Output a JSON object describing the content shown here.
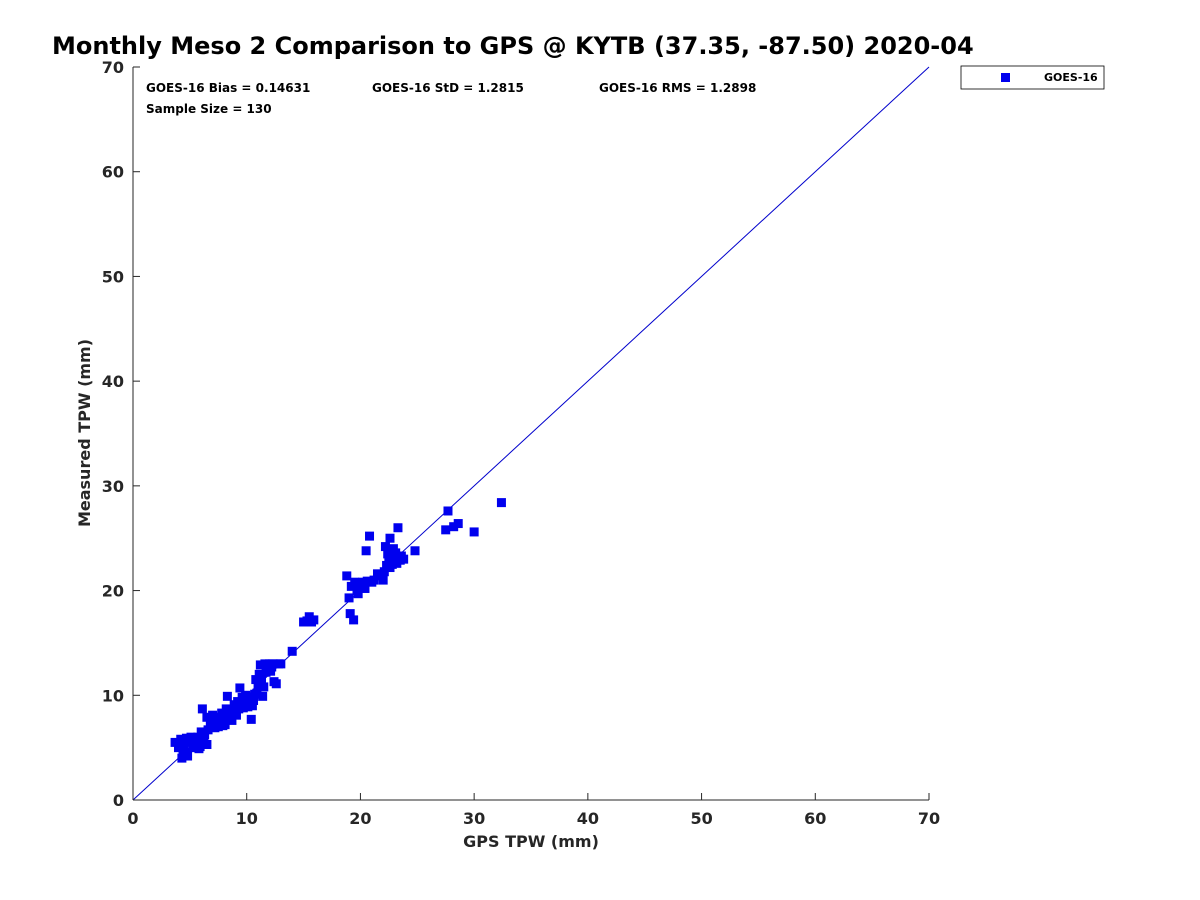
{
  "chart_data": {
    "type": "scatter",
    "title": "Monthly Meso 2 Comparison to GPS @ KYTB (37.35, -87.50) 2020-04",
    "xlabel": "GPS TPW (mm)",
    "ylabel": "Measured TPW (mm)",
    "xlim": [
      0,
      70
    ],
    "ylim": [
      0,
      70
    ],
    "xticks": [
      "0",
      "10",
      "20",
      "30",
      "40",
      "50",
      "60",
      "70"
    ],
    "yticks": [
      "0",
      "10",
      "20",
      "30",
      "40",
      "50",
      "60",
      "70"
    ],
    "grid": false,
    "legend_position": "outside-top-right",
    "annotations": {
      "bias": "GOES-16 Bias = 0.14631",
      "std": "GOES-16 StD = 1.2815",
      "rms": "GOES-16 RMS = 1.2898",
      "sample_size": "Sample Size = 130"
    },
    "reference_line": {
      "type": "identity",
      "from": [
        0,
        0
      ],
      "to": [
        70,
        70
      ],
      "color": "#0000cc"
    },
    "series": [
      {
        "name": "GOES-16",
        "color": "#0000ee",
        "marker": "square",
        "points": [
          [
            3.7,
            5.5
          ],
          [
            4.0,
            5.0
          ],
          [
            4.2,
            5.8
          ],
          [
            4.3,
            4.0
          ],
          [
            4.5,
            5.2
          ],
          [
            4.6,
            4.6
          ],
          [
            4.7,
            5.9
          ],
          [
            4.8,
            4.2
          ],
          [
            5.0,
            5.5
          ],
          [
            5.1,
            6.0
          ],
          [
            5.3,
            5.0
          ],
          [
            5.4,
            5.7
          ],
          [
            5.6,
            5.3
          ],
          [
            5.7,
            6.0
          ],
          [
            5.8,
            4.9
          ],
          [
            6.0,
            6.5
          ],
          [
            6.1,
            8.7
          ],
          [
            6.2,
            5.5
          ],
          [
            6.3,
            6.2
          ],
          [
            6.5,
            5.3
          ],
          [
            6.5,
            7.9
          ],
          [
            6.6,
            6.7
          ],
          [
            6.8,
            7.2
          ],
          [
            7.0,
            8.1
          ],
          [
            7.1,
            7.3
          ],
          [
            7.2,
            6.9
          ],
          [
            7.4,
            7.9
          ],
          [
            7.5,
            7.0
          ],
          [
            7.7,
            7.5
          ],
          [
            7.9,
            7.1
          ],
          [
            8.0,
            8.0
          ],
          [
            8.1,
            7.2
          ],
          [
            8.2,
            8.7
          ],
          [
            8.3,
            9.9
          ],
          [
            8.4,
            7.8
          ],
          [
            8.5,
            8.4
          ],
          [
            8.7,
            7.6
          ],
          [
            8.8,
            8.2
          ],
          [
            9.0,
            8.8
          ],
          [
            9.1,
            8.1
          ],
          [
            9.2,
            9.4
          ],
          [
            9.3,
            8.7
          ],
          [
            9.4,
            10.7
          ],
          [
            9.5,
            9.0
          ],
          [
            9.6,
            9.8
          ],
          [
            9.7,
            8.8
          ],
          [
            9.8,
            9.3
          ],
          [
            9.9,
            10.0
          ],
          [
            10.0,
            9.5
          ],
          [
            10.1,
            8.9
          ],
          [
            10.2,
            9.2
          ],
          [
            10.3,
            9.8
          ],
          [
            10.4,
            7.7
          ],
          [
            10.5,
            9.0
          ],
          [
            10.6,
            9.5
          ],
          [
            10.8,
            11.5
          ],
          [
            10.9,
            10.2
          ],
          [
            11.0,
            11.0
          ],
          [
            11.1,
            12.0
          ],
          [
            11.2,
            12.9
          ],
          [
            11.3,
            11.6
          ],
          [
            11.4,
            9.9
          ],
          [
            11.5,
            10.8
          ],
          [
            11.6,
            13.0
          ],
          [
            11.7,
            12.2
          ],
          [
            11.9,
            12.6
          ],
          [
            12.0,
            13.0
          ],
          [
            12.2,
            12.7
          ],
          [
            12.3,
            13.0
          ],
          [
            12.4,
            11.3
          ],
          [
            12.6,
            11.1
          ],
          [
            12.8,
            13.0
          ],
          [
            13.0,
            13.0
          ],
          [
            14.0,
            14.2
          ],
          [
            15.0,
            17.0
          ],
          [
            15.3,
            17.1
          ],
          [
            15.5,
            17.5
          ],
          [
            15.7,
            17.0
          ],
          [
            15.9,
            17.2
          ],
          [
            18.8,
            21.4
          ],
          [
            19.0,
            19.3
          ],
          [
            19.1,
            17.8
          ],
          [
            19.2,
            20.4
          ],
          [
            19.4,
            17.2
          ],
          [
            19.5,
            20.8
          ],
          [
            19.7,
            20.0
          ],
          [
            19.8,
            19.7
          ],
          [
            20.0,
            20.5
          ],
          [
            20.2,
            20.8
          ],
          [
            20.4,
            20.2
          ],
          [
            20.5,
            23.8
          ],
          [
            20.6,
            20.9
          ],
          [
            20.8,
            25.2
          ],
          [
            21.0,
            20.8
          ],
          [
            21.5,
            21.6
          ],
          [
            21.8,
            21.4
          ],
          [
            22.0,
            21.0
          ],
          [
            22.1,
            21.8
          ],
          [
            22.2,
            24.2
          ],
          [
            22.3,
            22.4
          ],
          [
            22.4,
            23.5
          ],
          [
            22.5,
            22.8
          ],
          [
            22.6,
            25.0
          ],
          [
            22.7,
            23.2
          ],
          [
            22.8,
            22.5
          ],
          [
            22.9,
            24.0
          ],
          [
            23.0,
            22.9
          ],
          [
            23.1,
            23.6
          ],
          [
            23.2,
            22.6
          ],
          [
            23.3,
            26.0
          ],
          [
            23.4,
            23.1
          ],
          [
            23.5,
            22.9
          ],
          [
            23.8,
            23.0
          ],
          [
            24.8,
            23.8
          ],
          [
            27.5,
            25.8
          ],
          [
            27.7,
            27.6
          ],
          [
            28.2,
            26.1
          ],
          [
            28.6,
            26.4
          ],
          [
            30.0,
            25.6
          ],
          [
            32.4,
            28.4
          ],
          [
            4.4,
            4.3
          ],
          [
            5.9,
            5.1
          ],
          [
            6.9,
            7.0
          ],
          [
            7.8,
            8.3
          ],
          [
            8.9,
            9.1
          ],
          [
            10.7,
            10.1
          ],
          [
            12.1,
            12.3
          ],
          [
            21.2,
            21.0
          ],
          [
            22.6,
            22.2
          ],
          [
            23.6,
            23.3
          ]
        ]
      }
    ]
  }
}
